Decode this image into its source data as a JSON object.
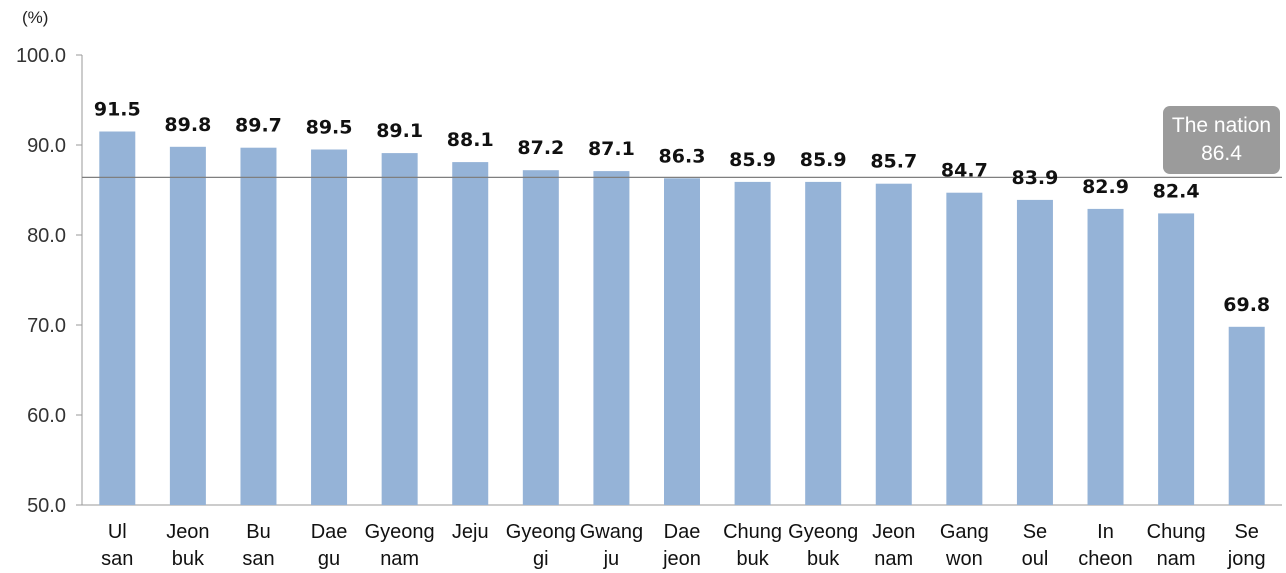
{
  "chart_data": {
    "type": "bar",
    "unit_label": "(%)",
    "ylim": [
      50,
      100
    ],
    "yticks": [
      "50.0",
      "60.0",
      "70.0",
      "80.0",
      "90.0",
      "100.0"
    ],
    "categories": [
      [
        "Ul",
        "san"
      ],
      [
        "Jeon",
        "buk"
      ],
      [
        "Bu",
        "san"
      ],
      [
        "Dae",
        "gu"
      ],
      [
        "Gyeong",
        "nam"
      ],
      [
        "Jeju",
        ""
      ],
      [
        "Gyeong",
        "gi"
      ],
      [
        "Gwang",
        "ju"
      ],
      [
        "Dae",
        "jeon"
      ],
      [
        "Chung",
        "buk"
      ],
      [
        "Gyeong",
        "buk"
      ],
      [
        "Jeon",
        "nam"
      ],
      [
        "Gang",
        "won"
      ],
      [
        "Se",
        "oul"
      ],
      [
        "In",
        "cheon"
      ],
      [
        "Chung",
        "nam"
      ],
      [
        "Se",
        "jong"
      ]
    ],
    "values": [
      91.5,
      89.8,
      89.7,
      89.5,
      89.1,
      88.1,
      87.2,
      87.1,
      86.3,
      85.9,
      85.9,
      85.7,
      84.7,
      83.9,
      82.9,
      82.4,
      69.8
    ],
    "value_labels": [
      "91.5",
      "89.8",
      "89.7",
      "89.5",
      "89.1",
      "88.1",
      "87.2",
      "87.1",
      "86.3",
      "85.9",
      "85.9",
      "85.7",
      "84.7",
      "83.9",
      "82.9",
      "82.4",
      "69.8"
    ],
    "reference_line": {
      "label": "The nation",
      "value": 86.4,
      "value_label": "86.4"
    },
    "bar_color": "#95b3d7",
    "grid": false
  }
}
